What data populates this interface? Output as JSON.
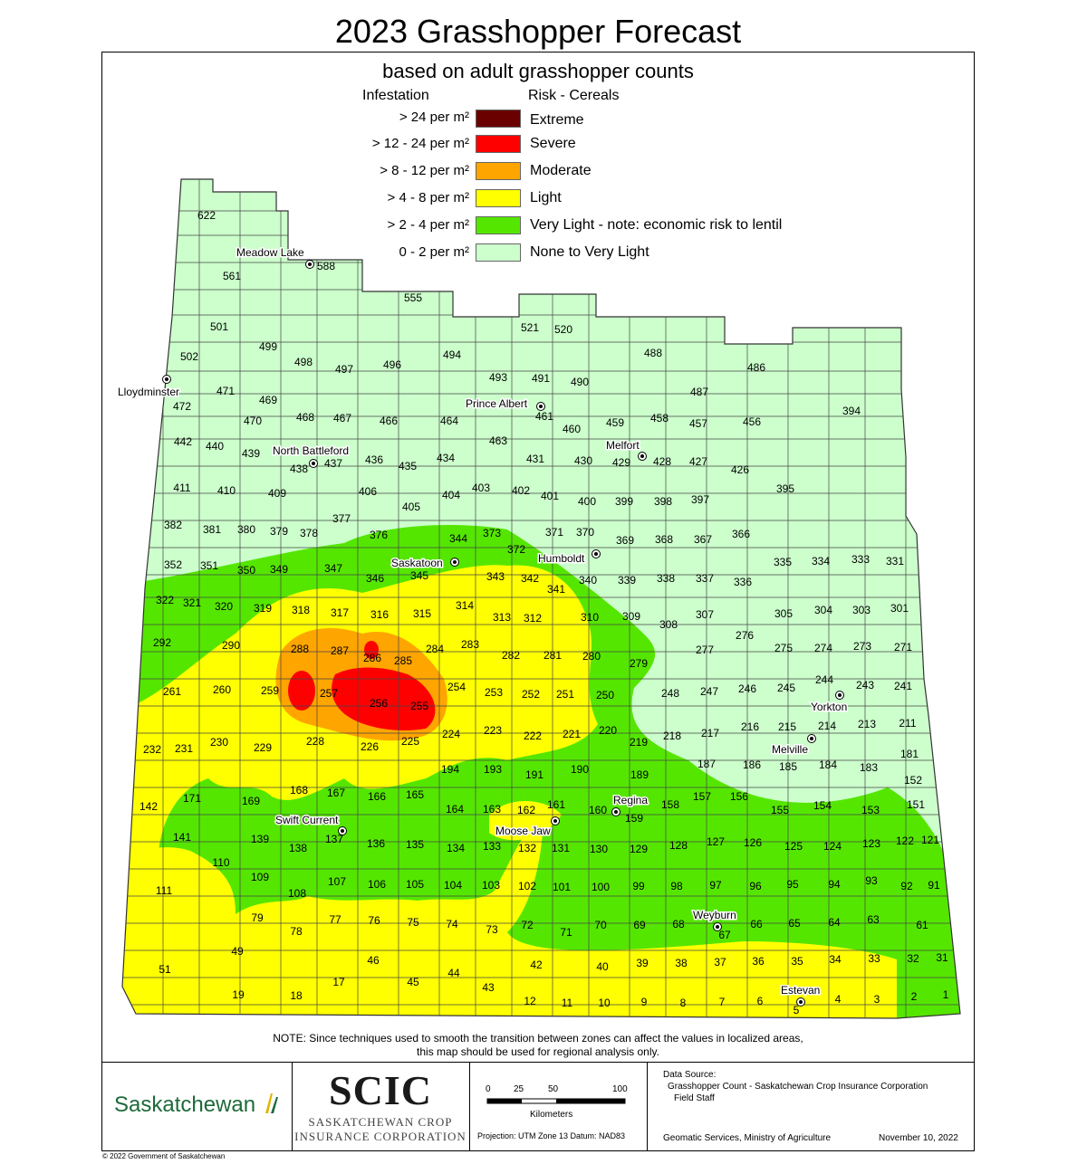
{
  "title": "2023 Grasshopper Forecast",
  "subtitle": "based on adult grasshopper counts",
  "legend": {
    "infestation_header": "Infestation",
    "risk_header": "Risk - Cereals",
    "items": [
      {
        "range": "> 24 per m²",
        "label": "Extreme",
        "color": "#6b0000"
      },
      {
        "range": "> 12 - 24 per m²",
        "label": "Severe",
        "color": "#ff0000"
      },
      {
        "range": "> 8 - 12 per m²",
        "label": "Moderate",
        "color": "#ffa500"
      },
      {
        "range": "> 4 - 8 per m²",
        "label": "Light",
        "color": "#ffff00"
      },
      {
        "range": "> 2 - 4 per m²",
        "label": "Very Light - note: economic risk to lentil",
        "color": "#55e600"
      },
      {
        "range": "0 - 2 per m²",
        "label": "None to Very Light",
        "color": "#ccffcc"
      }
    ]
  },
  "cities": {
    "meadow_lake": "Meadow Lake",
    "lloydminster": "Lloydminster",
    "north_battleford": "North Battleford",
    "prince_albert": "Prince Albert",
    "melfort": "Melfort",
    "saskatoon": "Saskatoon",
    "humboldt": "Humboldt",
    "yorkton": "Yorkton",
    "melville": "Melville",
    "regina": "Regina",
    "swift_current": "Swift Current",
    "moose_jaw": "Moose Jaw",
    "weyburn": "Weyburn",
    "estevan": "Estevan"
  },
  "rms": [
    "622",
    "588",
    "561",
    "555",
    "521",
    "520",
    "501",
    "502",
    "499",
    "498",
    "497",
    "496",
    "494",
    "493",
    "491",
    "490",
    "488",
    "486",
    "487",
    "471",
    "472",
    "469",
    "468",
    "467",
    "466",
    "464",
    "463",
    "461",
    "460",
    "459",
    "458",
    "457",
    "456",
    "394",
    "442",
    "440",
    "470",
    "439",
    "438",
    "437",
    "436",
    "435",
    "434",
    "431",
    "430",
    "429",
    "428",
    "427",
    "426",
    "411",
    "410",
    "409",
    "406",
    "405",
    "404",
    "403",
    "402",
    "401",
    "400",
    "399",
    "398",
    "397",
    "395",
    "382",
    "381",
    "380",
    "379",
    "378",
    "377",
    "376",
    "344",
    "373",
    "372",
    "371",
    "370",
    "369",
    "368",
    "367",
    "366",
    "352",
    "351",
    "350",
    "349",
    "347",
    "346",
    "345",
    "343",
    "342",
    "341",
    "340",
    "339",
    "338",
    "337",
    "336",
    "335",
    "334",
    "333",
    "331",
    "322",
    "321",
    "320",
    "319",
    "318",
    "317",
    "316",
    "315",
    "314",
    "313",
    "312",
    "310",
    "309",
    "308",
    "307",
    "305",
    "304",
    "303",
    "301",
    "292",
    "290",
    "288",
    "287",
    "286",
    "285",
    "284",
    "283",
    "282",
    "281",
    "280",
    "279",
    "277",
    "276",
    "275",
    "274",
    "273",
    "271",
    "261",
    "260",
    "259",
    "257",
    "256",
    "255",
    "254",
    "253",
    "252",
    "251",
    "250",
    "248",
    "247",
    "246",
    "245",
    "244",
    "243",
    "241",
    "232",
    "231",
    "230",
    "229",
    "228",
    "226",
    "225",
    "224",
    "223",
    "222",
    "221",
    "220",
    "219",
    "218",
    "217",
    "216",
    "215",
    "214",
    "213",
    "211",
    "194",
    "193",
    "191",
    "190",
    "189",
    "187",
    "186",
    "185",
    "184",
    "183",
    "181",
    "152",
    "168",
    "167",
    "166",
    "165",
    "164",
    "163",
    "162",
    "161",
    "160",
    "159",
    "158",
    "157",
    "156",
    "155",
    "154",
    "153",
    "151",
    "142",
    "171",
    "169",
    "141",
    "139",
    "138",
    "137",
    "136",
    "135",
    "134",
    "133",
    "132",
    "131",
    "130",
    "129",
    "128",
    "127",
    "126",
    "125",
    "124",
    "123",
    "122",
    "121",
    "110",
    "109",
    "108",
    "107",
    "106",
    "105",
    "104",
    "103",
    "102",
    "101",
    "100",
    "99",
    "98",
    "97",
    "96",
    "95",
    "94",
    "93",
    "92",
    "91",
    "111",
    "79",
    "78",
    "77",
    "76",
    "75",
    "74",
    "73",
    "72",
    "71",
    "70",
    "69",
    "68",
    "67",
    "66",
    "65",
    "64",
    "63",
    "61",
    "49",
    "46",
    "51",
    "17",
    "45",
    "44",
    "43",
    "42",
    "40",
    "39",
    "38",
    "37",
    "36",
    "35",
    "34",
    "33",
    "32",
    "31",
    "19",
    "18",
    "12",
    "11",
    "10",
    "9",
    "8",
    "7",
    "6",
    "5",
    "4",
    "3",
    "2",
    "1"
  ],
  "note_line1": "NOTE:  Since techniques used to smooth the transition between zones can affect the values in localized areas,",
  "note_line2": "this map should be used for regional analysis only.",
  "footer": {
    "sask_logo": "Saskatchewan",
    "scic_logo": "SCIC",
    "scic_sub1": "SASKATCHEWAN CROP",
    "scic_sub2": "INSURANCE CORPORATION",
    "scale_ticks": [
      "0",
      "25",
      "50",
      "100"
    ],
    "scale_unit": "Kilometers",
    "projection": "Projection: UTM Zone 13   Datum: NAD83",
    "data_source_head": "Data Source:",
    "data_source_1": "Grasshopper Count - Saskatchewan Crop Insurance Corporation",
    "data_source_2": "Field Staff",
    "ministry": "Geomatic Services, Ministry of Agriculture",
    "date": "November 10, 2022",
    "copyright": "© 2022 Government of Saskatchewan"
  }
}
